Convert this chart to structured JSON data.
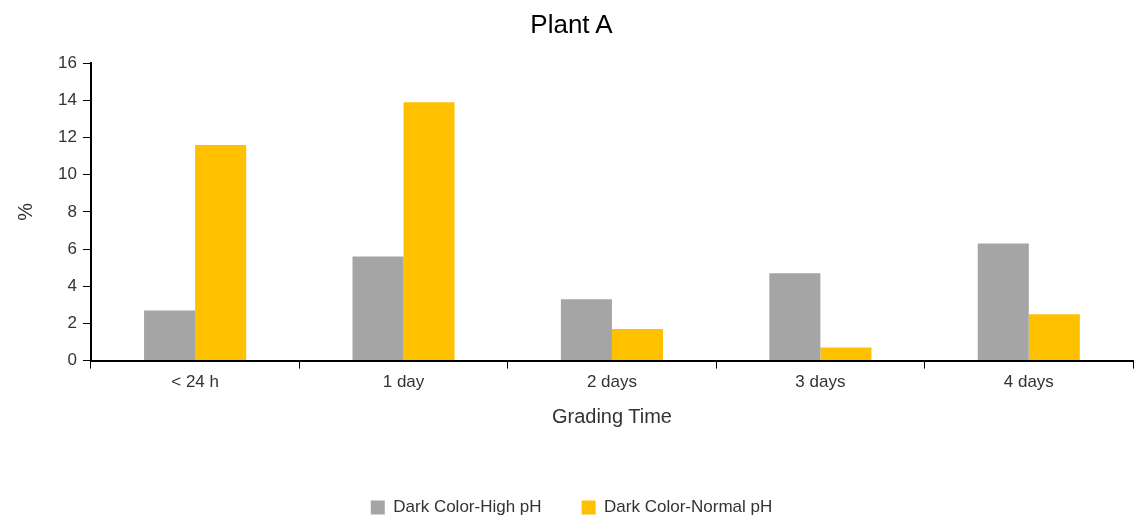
{
  "chart_data": {
    "type": "bar",
    "title": "Plant A",
    "xlabel": "Grading Time",
    "ylabel": "%",
    "categories": [
      "< 24 h",
      "1 day",
      "2 days",
      "3 days",
      "4 days"
    ],
    "series": [
      {
        "name": "Dark Color-High pH",
        "color": "#a5a5a5",
        "values": [
          2.7,
          5.6,
          3.3,
          4.7,
          6.3
        ]
      },
      {
        "name": "Dark Color-Normal pH",
        "color": "#ffc000",
        "values": [
          11.6,
          13.9,
          1.7,
          0.7,
          2.5
        ]
      }
    ],
    "ylim": [
      0,
      16
    ],
    "yticks": [
      0,
      2,
      4,
      6,
      8,
      10,
      12,
      14,
      16
    ],
    "grid": false,
    "legend": "bottom"
  }
}
